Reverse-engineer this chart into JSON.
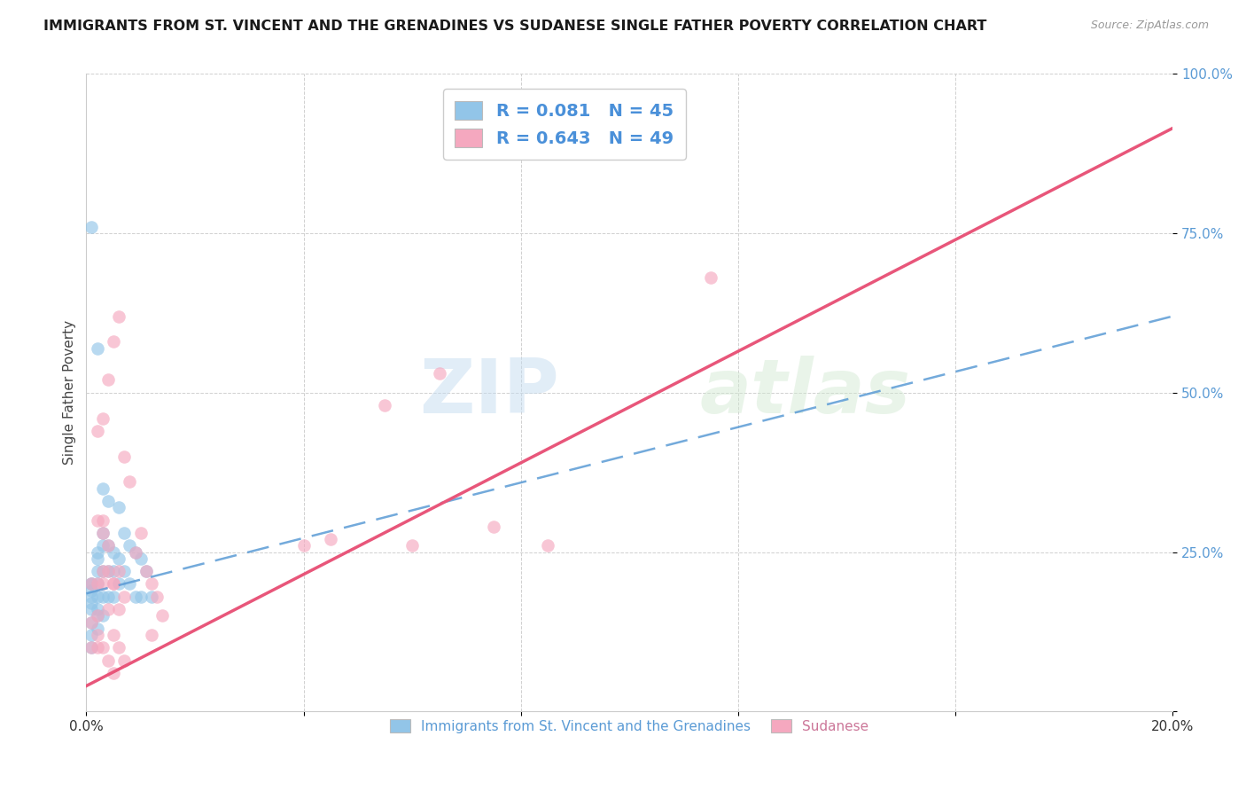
{
  "title": "IMMIGRANTS FROM ST. VINCENT AND THE GRENADINES VS SUDANESE SINGLE FATHER POVERTY CORRELATION CHART",
  "source": "Source: ZipAtlas.com",
  "xlabel": "",
  "ylabel": "Single Father Poverty",
  "xlim": [
    0.0,
    0.2
  ],
  "ylim": [
    0.0,
    1.0
  ],
  "y_ticks": [
    0.0,
    0.25,
    0.5,
    0.75,
    1.0
  ],
  "y_tick_labels": [
    "",
    "25.0%",
    "50.0%",
    "75.0%",
    "100.0%"
  ],
  "blue_color": "#92c5e8",
  "pink_color": "#f5a8bf",
  "blue_line_color": "#5b9bd5",
  "pink_line_color": "#e8567a",
  "watermark_zip": "ZIP",
  "watermark_atlas": "atlas",
  "legend_label1": "R = 0.081   N = 45",
  "legend_label2": "R = 0.643   N = 49",
  "legend_bottom_label1": "Immigrants from St. Vincent and the Grenadines",
  "legend_bottom_label2": "Sudanese",
  "blue_line_x0": 0.0,
  "blue_line_y0": 0.185,
  "blue_line_x1": 0.2,
  "blue_line_y1": 0.62,
  "pink_line_x0": 0.0,
  "pink_line_y0": 0.04,
  "pink_line_x1": 0.2,
  "pink_line_y1": 0.915,
  "blue_scatter_x": [
    0.001,
    0.001,
    0.001,
    0.001,
    0.001,
    0.001,
    0.001,
    0.001,
    0.001,
    0.002,
    0.002,
    0.002,
    0.002,
    0.002,
    0.002,
    0.002,
    0.002,
    0.003,
    0.003,
    0.003,
    0.003,
    0.003,
    0.003,
    0.004,
    0.004,
    0.004,
    0.004,
    0.005,
    0.005,
    0.005,
    0.006,
    0.006,
    0.006,
    0.007,
    0.007,
    0.008,
    0.008,
    0.009,
    0.009,
    0.01,
    0.01,
    0.011,
    0.012,
    0.001,
    0.002
  ],
  "blue_scatter_y": [
    0.76,
    0.2,
    0.19,
    0.18,
    0.17,
    0.16,
    0.14,
    0.12,
    0.1,
    0.57,
    0.24,
    0.22,
    0.2,
    0.18,
    0.16,
    0.15,
    0.13,
    0.35,
    0.28,
    0.26,
    0.22,
    0.18,
    0.15,
    0.33,
    0.26,
    0.22,
    0.18,
    0.25,
    0.22,
    0.18,
    0.32,
    0.24,
    0.2,
    0.28,
    0.22,
    0.26,
    0.2,
    0.25,
    0.18,
    0.24,
    0.18,
    0.22,
    0.18,
    0.2,
    0.25
  ],
  "pink_scatter_x": [
    0.001,
    0.001,
    0.002,
    0.002,
    0.002,
    0.002,
    0.003,
    0.003,
    0.003,
    0.004,
    0.004,
    0.005,
    0.005,
    0.006,
    0.006,
    0.007,
    0.007,
    0.008,
    0.009,
    0.01,
    0.011,
    0.012,
    0.012,
    0.013,
    0.014,
    0.001,
    0.002,
    0.003,
    0.004,
    0.005,
    0.003,
    0.004,
    0.005,
    0.006,
    0.007,
    0.002,
    0.003,
    0.004,
    0.005,
    0.006,
    0.04,
    0.045,
    0.055,
    0.06,
    0.065,
    0.075,
    0.085,
    0.09,
    0.115
  ],
  "pink_scatter_y": [
    0.2,
    0.1,
    0.44,
    0.2,
    0.15,
    0.1,
    0.46,
    0.3,
    0.2,
    0.52,
    0.22,
    0.58,
    0.2,
    0.62,
    0.22,
    0.4,
    0.18,
    0.36,
    0.25,
    0.28,
    0.22,
    0.2,
    0.12,
    0.18,
    0.15,
    0.14,
    0.12,
    0.1,
    0.08,
    0.06,
    0.22,
    0.16,
    0.12,
    0.1,
    0.08,
    0.3,
    0.28,
    0.26,
    0.2,
    0.16,
    0.26,
    0.27,
    0.48,
    0.26,
    0.53,
    0.29,
    0.26,
    0.88,
    0.68
  ]
}
